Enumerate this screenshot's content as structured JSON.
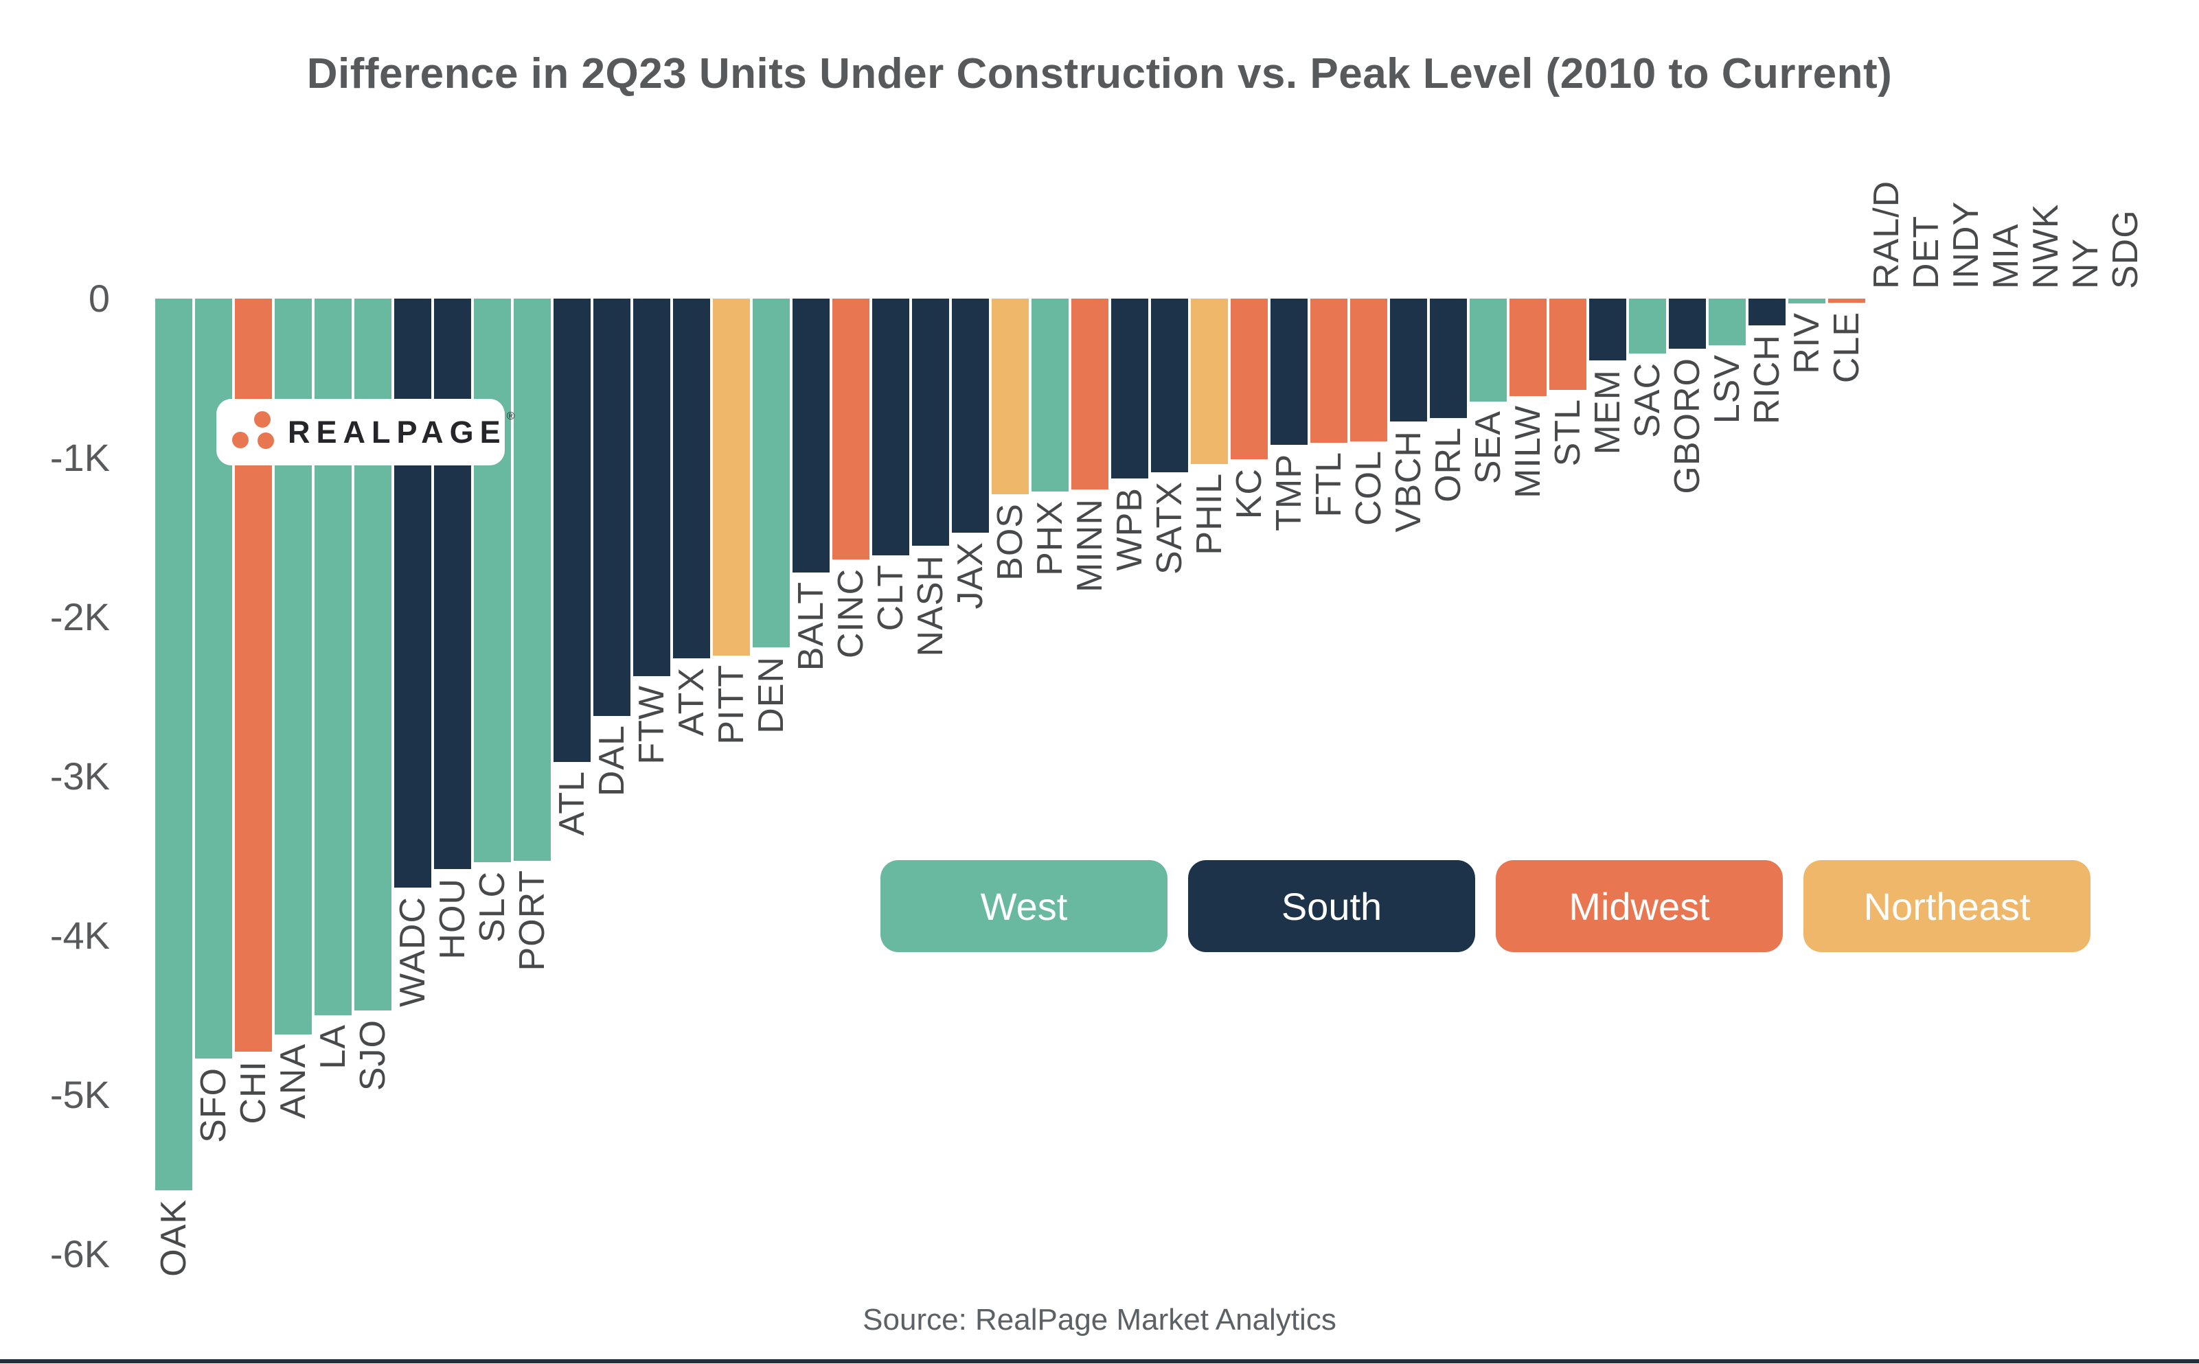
{
  "title": "Difference in 2Q23 Units Under Construction vs. Peak Level (2010 to Current)",
  "source": "Source: RealPage Market Analytics",
  "logo": {
    "brand": "REALPAGE",
    "registered": "®"
  },
  "colors": {
    "West": "#69b9a1",
    "South": "#1d3349",
    "Midwest": "#e87650",
    "Northeast": "#efb76a"
  },
  "legend": [
    {
      "label": "West"
    },
    {
      "label": "South"
    },
    {
      "label": "Midwest"
    },
    {
      "label": "Northeast"
    }
  ],
  "y_axis": {
    "ticks": [
      {
        "label": "0",
        "value": 0
      },
      {
        "label": "-1K",
        "value": -1000
      },
      {
        "label": "-2K",
        "value": -2000
      },
      {
        "label": "-3K",
        "value": -3000
      },
      {
        "label": "-4K",
        "value": -4000
      },
      {
        "label": "-5K",
        "value": -5000
      },
      {
        "label": "-6K",
        "value": -6000
      }
    ]
  },
  "chart_data": {
    "type": "bar",
    "title": "Difference in 2Q23 Units Under Construction vs. Peak Level (2010 to Current)",
    "xlabel": "",
    "ylabel": "",
    "ylim": [
      -6000,
      0
    ],
    "grid": false,
    "legend_position": "center-right",
    "x_label_rotation": -90,
    "bars": [
      {
        "market": "OAK",
        "region": "West",
        "value": -5600
      },
      {
        "market": "SFO",
        "region": "West",
        "value": -4770
      },
      {
        "market": "CHI",
        "region": "Midwest",
        "value": -4730
      },
      {
        "market": "ANA",
        "region": "West",
        "value": -4620
      },
      {
        "market": "LA",
        "region": "West",
        "value": -4500
      },
      {
        "market": "SJO",
        "region": "West",
        "value": -4470
      },
      {
        "market": "WADC",
        "region": "South",
        "value": -3700
      },
      {
        "market": "HOU",
        "region": "South",
        "value": -3580
      },
      {
        "market": "SLC",
        "region": "West",
        "value": -3540
      },
      {
        "market": "PORT",
        "region": "West",
        "value": -3530
      },
      {
        "market": "ATL",
        "region": "South",
        "value": -2910
      },
      {
        "market": "DAL",
        "region": "South",
        "value": -2620
      },
      {
        "market": "FTW",
        "region": "South",
        "value": -2370
      },
      {
        "market": "ATX",
        "region": "South",
        "value": -2260
      },
      {
        "market": "PITT",
        "region": "Northeast",
        "value": -2240
      },
      {
        "market": "DEN",
        "region": "West",
        "value": -2190
      },
      {
        "market": "BALT",
        "region": "South",
        "value": -1720
      },
      {
        "market": "CINC",
        "region": "Midwest",
        "value": -1640
      },
      {
        "market": "CLT",
        "region": "South",
        "value": -1610
      },
      {
        "market": "NASH",
        "region": "South",
        "value": -1550
      },
      {
        "market": "JAX",
        "region": "South",
        "value": -1470
      },
      {
        "market": "BOS",
        "region": "Northeast",
        "value": -1230
      },
      {
        "market": "PHX",
        "region": "West",
        "value": -1210
      },
      {
        "market": "MINN",
        "region": "Midwest",
        "value": -1200
      },
      {
        "market": "WPB",
        "region": "South",
        "value": -1130
      },
      {
        "market": "SATX",
        "region": "South",
        "value": -1090
      },
      {
        "market": "PHIL",
        "region": "Northeast",
        "value": -1040
      },
      {
        "market": "KC",
        "region": "Midwest",
        "value": -1010
      },
      {
        "market": "TMP",
        "region": "South",
        "value": -920
      },
      {
        "market": "FTL",
        "region": "Midwest",
        "value": -905
      },
      {
        "market": "COL",
        "region": "Midwest",
        "value": -895
      },
      {
        "market": "VBCH",
        "region": "South",
        "value": -770
      },
      {
        "market": "ORL",
        "region": "South",
        "value": -750
      },
      {
        "market": "SEA",
        "region": "West",
        "value": -645
      },
      {
        "market": "MILW",
        "region": "Midwest",
        "value": -610
      },
      {
        "market": "STL",
        "region": "Midwest",
        "value": -575
      },
      {
        "market": "MEM",
        "region": "South",
        "value": -390
      },
      {
        "market": "SAC",
        "region": "West",
        "value": -345
      },
      {
        "market": "GBORO",
        "region": "South",
        "value": -315
      },
      {
        "market": "LSV",
        "region": "West",
        "value": -295
      },
      {
        "market": "RICH",
        "region": "South",
        "value": -170
      },
      {
        "market": "RIV",
        "region": "West",
        "value": -30
      },
      {
        "market": "CLE",
        "region": "Midwest",
        "value": -25
      },
      {
        "market": "RAL/D",
        "region": "South",
        "value": 0
      },
      {
        "market": "DET",
        "region": "Midwest",
        "value": 0
      },
      {
        "market": "INDY",
        "region": "Midwest",
        "value": 0
      },
      {
        "market": "MIA",
        "region": "South",
        "value": 0
      },
      {
        "market": "NWK",
        "region": "Northeast",
        "value": 0
      },
      {
        "market": "NY",
        "region": "Northeast",
        "value": 0
      },
      {
        "market": "SDG",
        "region": "West",
        "value": 0
      }
    ]
  }
}
